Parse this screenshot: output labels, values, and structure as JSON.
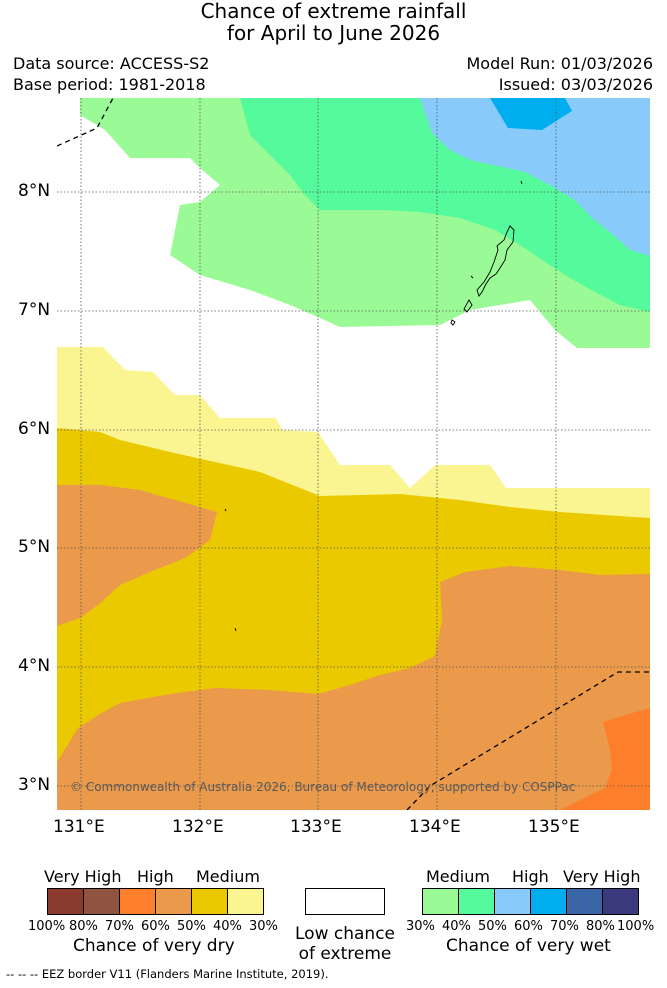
{
  "title": {
    "line1": "Chance of extreme rainfall",
    "line2": "for April to June 2026"
  },
  "meta": {
    "data_source": "Data source: ACCESS-S2",
    "base_period": "Base period: 1981-2018",
    "model_run": "Model Run: 01/03/2026",
    "issued": "Issued: 03/03/2026"
  },
  "axes": {
    "lat_labels": [
      "8°N",
      "7°N",
      "6°N",
      "5°N",
      "4°N",
      "3°N"
    ],
    "lon_labels": [
      "131°E",
      "132°E",
      "133°E",
      "134°E",
      "135°E"
    ]
  },
  "copyright": "© Commonwealth of Australia 2026, Bureau of Meteorology, supported by COSPPac",
  "legend": {
    "dry": {
      "categories": [
        "Very High",
        "High",
        "Medium"
      ],
      "percentages": [
        "100%",
        "80%",
        "70%",
        "60%",
        "50%",
        "40%",
        "30%"
      ],
      "caption": "Chance of very dry",
      "colors": [
        "#8b3a30",
        "#8f5341",
        "#fd7f2c",
        "#ea9a4a",
        "#ebc900",
        "#fbf591"
      ]
    },
    "low": {
      "line1": "Low chance",
      "line2": "of extreme",
      "color": "#ffffff"
    },
    "wet": {
      "categories": [
        "Medium",
        "High",
        "Very High"
      ],
      "percentages": [
        "30%",
        "40%",
        "50%",
        "60%",
        "70%",
        "80%",
        "100%"
      ],
      "caption": "Chance of very wet",
      "colors": [
        "#9afb96",
        "#55fa9c",
        "#88cbfa",
        "#00aeef",
        "#3a65a6",
        "#3c3a7e"
      ]
    }
  },
  "footnote": "--  --  -- EEZ border V11 (Flanders Marine Institute, 2019)."
}
